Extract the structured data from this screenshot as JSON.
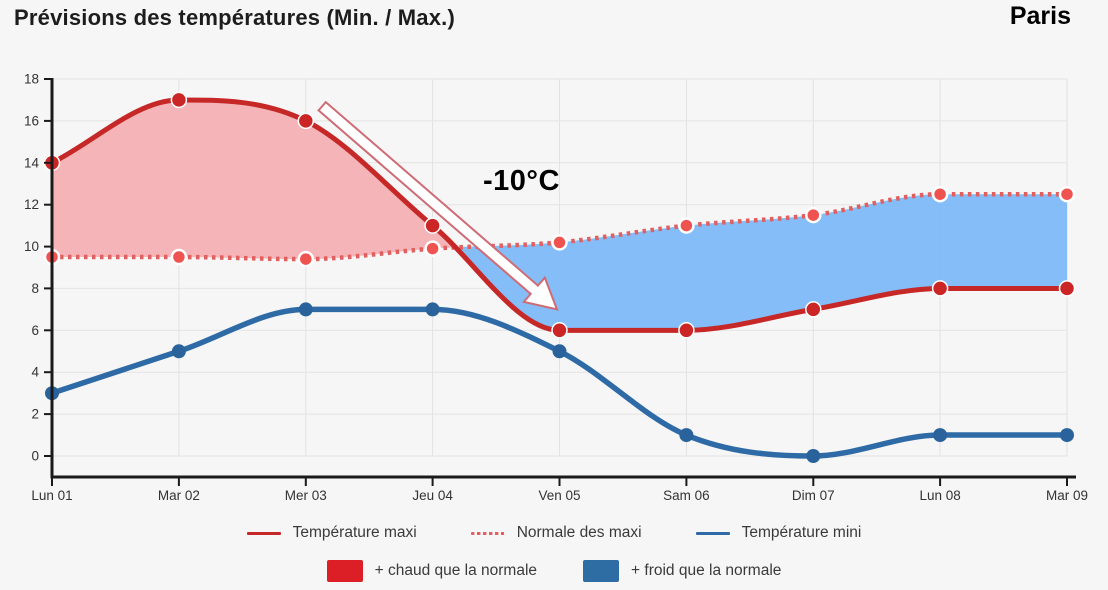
{
  "header": {
    "city": "Paris"
  },
  "chart_data": {
    "type": "line",
    "title": "Prévisions des températures (Min. / Max.)",
    "xlabel": "",
    "ylabel": "",
    "ylim": [
      0,
      18
    ],
    "yticks": [
      0,
      2,
      4,
      6,
      8,
      10,
      12,
      14,
      16,
      18
    ],
    "grid": true,
    "legend_position": "bottom",
    "categories": [
      "Lun 01",
      "Mar 02",
      "Mer 03",
      "Jeu 04",
      "Ven 05",
      "Sam 06",
      "Dim 07",
      "Lun 08",
      "Mar 09"
    ],
    "series": [
      {
        "name": "Température maxi",
        "style": "solid",
        "color": "#c62828",
        "marker_color": "#cb2525",
        "values": [
          14,
          17,
          16,
          11,
          6,
          6,
          7,
          8,
          8
        ]
      },
      {
        "name": "Normale des maxi",
        "style": "dotted",
        "color": "#e25f5f",
        "marker_color": "#ef5350",
        "values": [
          9.5,
          9.5,
          9.4,
          9.9,
          10.2,
          11,
          11.5,
          12.5,
          12.5
        ]
      },
      {
        "name": "Température mini",
        "style": "solid",
        "color": "#2e6ba6",
        "marker_color": "#2a639c",
        "values": [
          3,
          5,
          7,
          7,
          5,
          1,
          0,
          1,
          1
        ]
      }
    ],
    "areas": [
      {
        "name": "+ chaud que la normale",
        "between": [
          "Température maxi",
          "Normale des maxi"
        ],
        "fill": "#f4b0b4",
        "legend_swatch": "#dc1f26"
      },
      {
        "name": "+ froid que la normale",
        "between": [
          "Température maxi",
          "Normale des maxi"
        ],
        "fill": "#7db9f7",
        "legend_swatch": "#2e6da4"
      }
    ],
    "annotation": {
      "text": "-10°C",
      "arrow": {
        "from_day": 2.13,
        "from_temp": 16.7,
        "to_day": 3.98,
        "to_temp": 7.0
      },
      "arrow_fill": "#ffffff",
      "arrow_outline": "#cf6b74"
    },
    "colors": {
      "background": "#f6f6f6",
      "grid": "#e3e3e3",
      "axis": "#1a1a1a",
      "tick_label": "#333333"
    }
  }
}
